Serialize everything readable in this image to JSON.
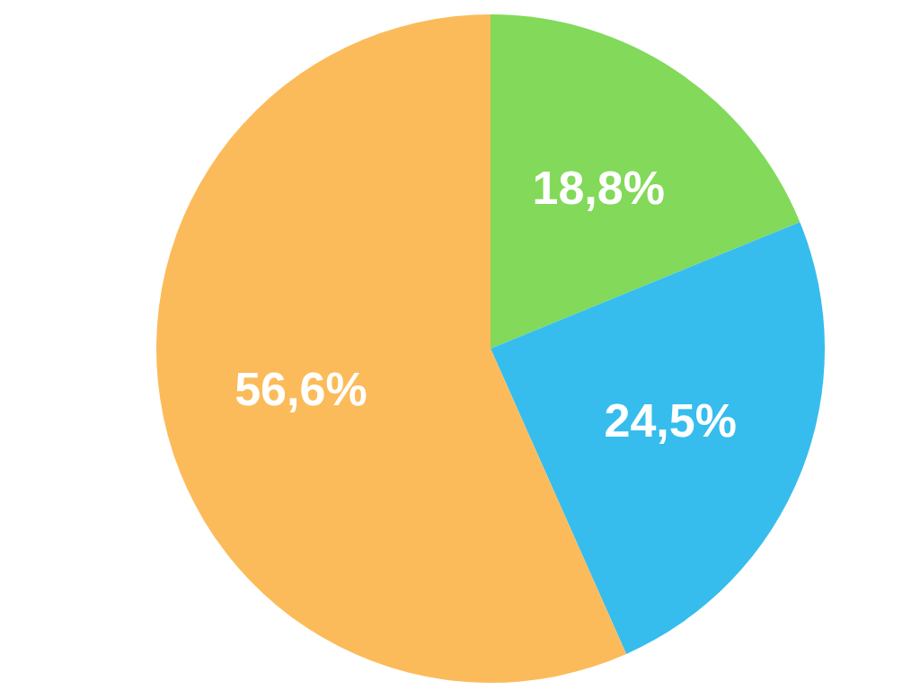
{
  "chart_data": {
    "type": "pie",
    "categories": [
      null,
      null,
      null
    ],
    "values": [
      18.8,
      24.5,
      56.6
    ],
    "colors": [
      "#82d95a",
      "#36bded",
      "#fcbb5a"
    ],
    "value_labels": [
      "18,8%",
      "24,5%",
      "56,6%"
    ]
  }
}
